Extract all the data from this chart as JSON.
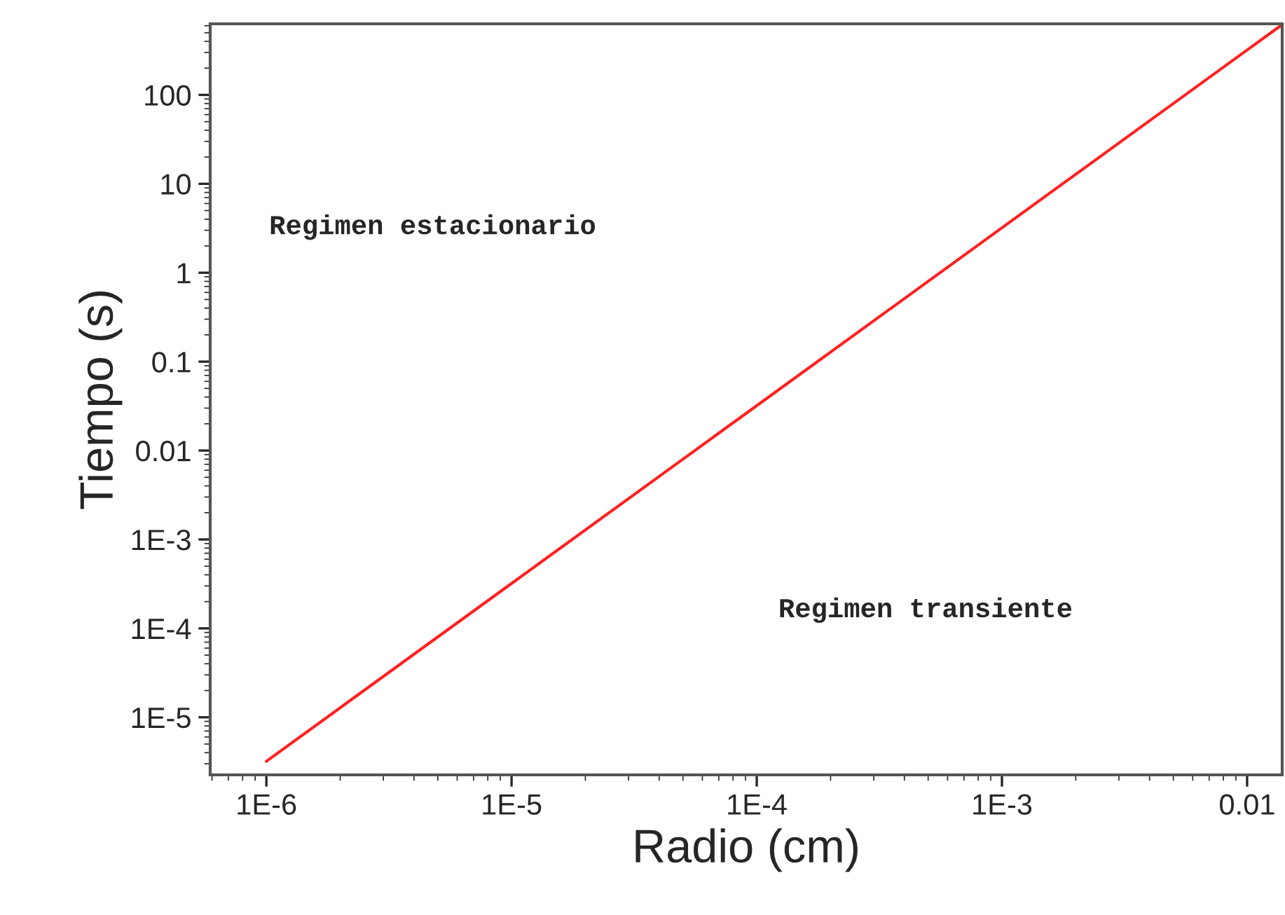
{
  "chart_data": {
    "type": "line",
    "xlabel": "Radio (cm)",
    "ylabel": "Tiempo (s)",
    "log": "xy",
    "x": [
      1e-06,
      1e-05,
      0.0001,
      0.001,
      0.01,
      0.0139
    ],
    "series": [
      {
        "color": "#ff2020",
        "values": [
          3.2e-06,
          0.00032,
          0.032,
          3.2,
          320,
          618
        ]
      }
    ],
    "xlim": [
      5.9e-07,
      0.0139
    ],
    "ylim": [
      2.25e-06,
      630
    ],
    "xticks": [
      {
        "value": 1e-06,
        "label": "1E-6"
      },
      {
        "value": 1e-05,
        "label": "1E-5"
      },
      {
        "value": 0.0001,
        "label": "1E-4"
      },
      {
        "value": 0.001,
        "label": "1E-3"
      },
      0.01
    ],
    "yticks": [
      {
        "value": 1e-05,
        "label": "1E-5"
      },
      {
        "value": 0.0001,
        "label": "1E-4"
      },
      {
        "value": 0.001,
        "label": "1E-3"
      },
      0.01,
      0.1,
      1,
      10,
      100
    ],
    "annotations": [
      "Regimen estacionario",
      "Regimen transiente"
    ],
    "grid": false,
    "legend": false
  }
}
